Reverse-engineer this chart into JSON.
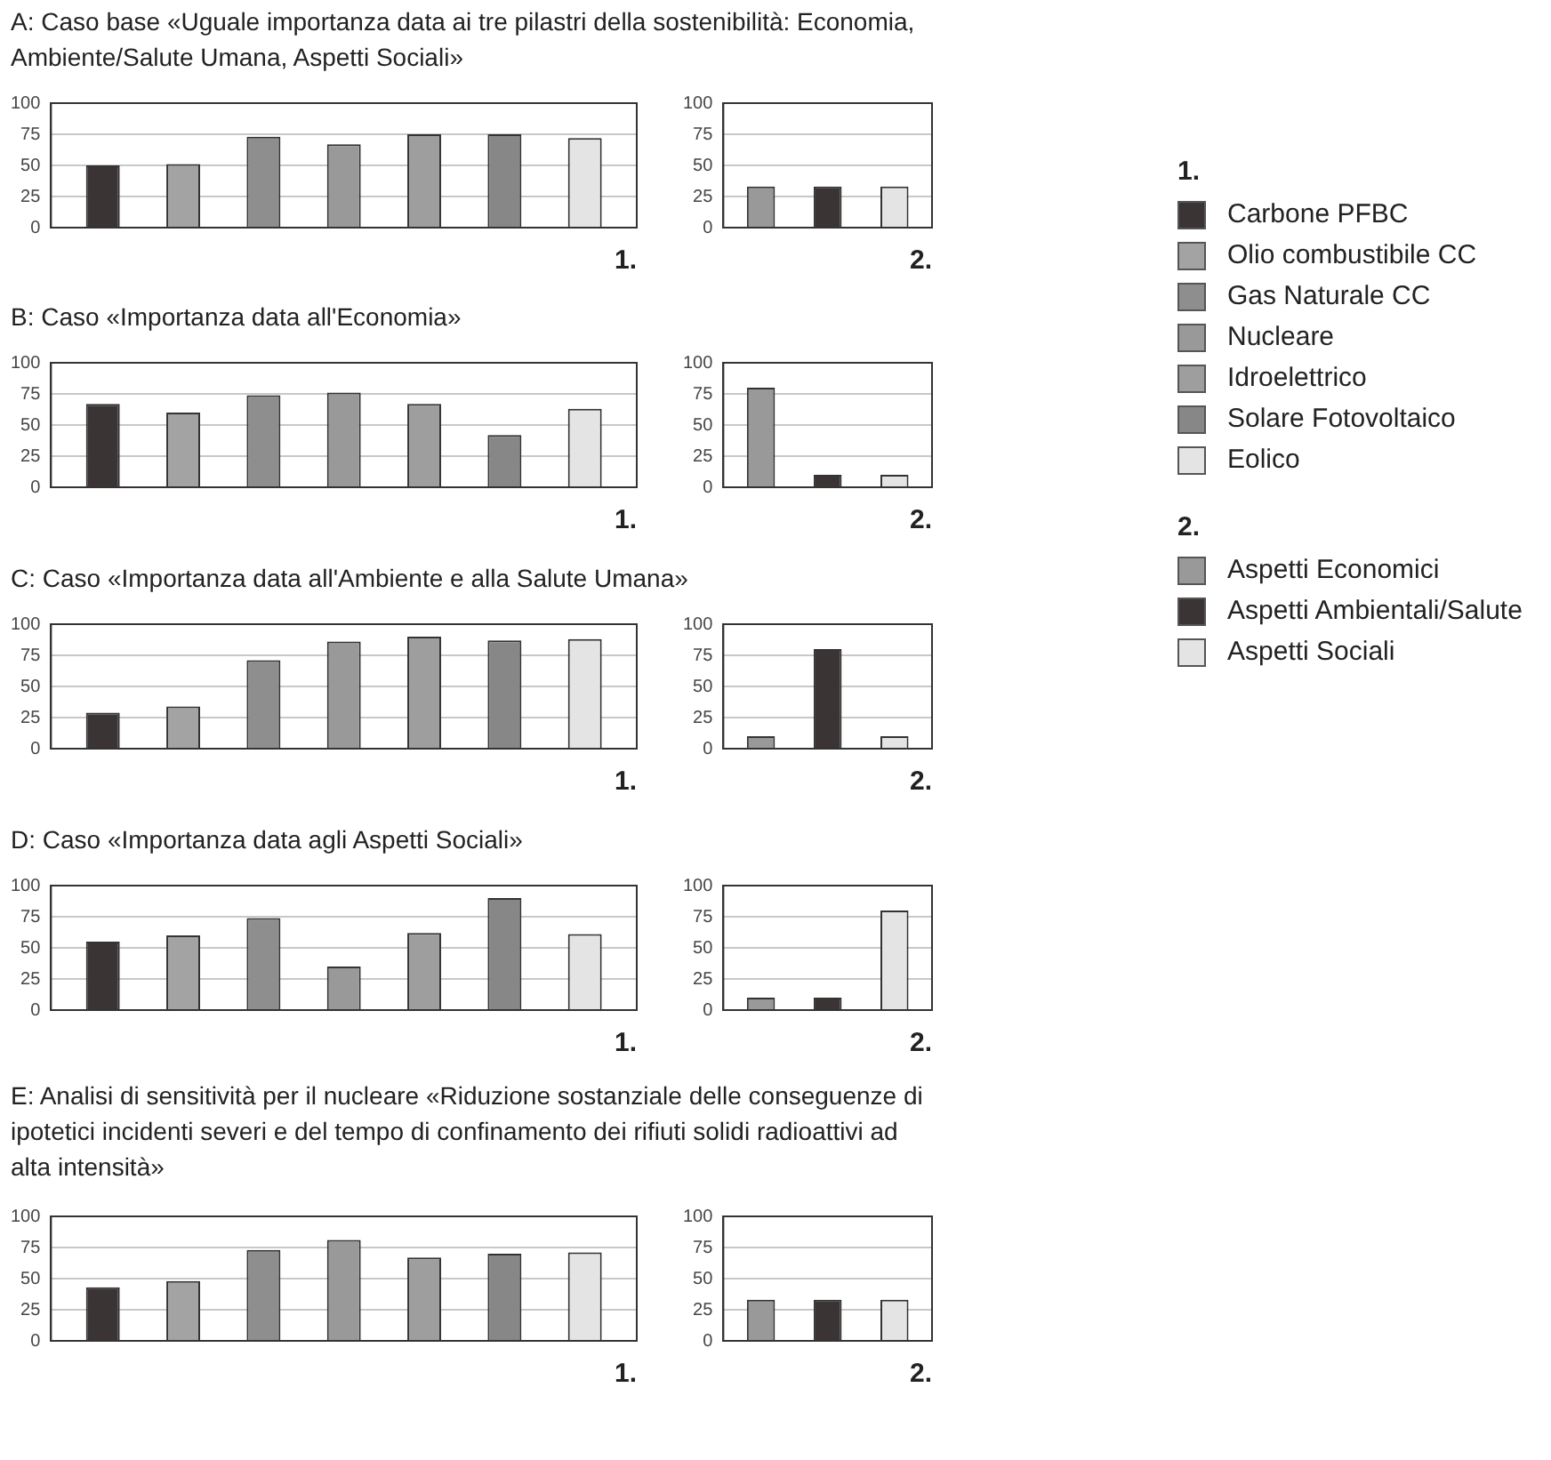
{
  "chart_data": [
    {
      "type": "bar",
      "title": "A: Caso base «Uguale importanza data ai tre pilastri della sostenibilità: Economia, Ambiente/Salute Umana, Aspetti Sociali»",
      "xlabel": "1.",
      "categories": [
        null
      ],
      "ylim": [
        0,
        100
      ],
      "yticks": [
        0,
        25,
        50,
        75,
        100
      ],
      "grid": "y",
      "legend": "right",
      "legend_title": "1.",
      "series": [
        {
          "name": "Carbone PFBC",
          "color": "#3b3434",
          "values": [
            50
          ]
        },
        {
          "name": "Olio combustibile CC",
          "color": "#a3a3a3",
          "values": [
            51
          ]
        },
        {
          "name": "Gas Naturale CC",
          "color": "#8e8e8e",
          "values": [
            73
          ]
        },
        {
          "name": "Nucleare",
          "color": "#999999",
          "values": [
            67
          ]
        },
        {
          "name": "Idroelettrico",
          "color": "#9e9e9e",
          "values": [
            75
          ]
        },
        {
          "name": "Solare Fotovoltaico",
          "color": "#878787",
          "values": [
            75
          ]
        },
        {
          "name": "Eolico",
          "color": "#e4e4e4",
          "values": [
            72
          ]
        }
      ]
    },
    {
      "type": "bar",
      "xlabel": "2.",
      "categories": [
        null
      ],
      "ylim": [
        0,
        100
      ],
      "yticks": [
        0,
        25,
        50,
        75,
        100
      ],
      "grid": "y",
      "legend": "right",
      "legend_title": "2.",
      "series": [
        {
          "name": "Aspetti Economici",
          "color": "#999999",
          "values": [
            33
          ]
        },
        {
          "name": "Aspetti Ambientali/Salute",
          "color": "#3b3434",
          "values": [
            33
          ]
        },
        {
          "name": "Aspetti Sociali",
          "color": "#e4e4e4",
          "values": [
            33
          ]
        }
      ]
    },
    {
      "type": "bar",
      "title": "B: Caso «Importanza data all'Economia»",
      "xlabel": "1.",
      "categories": [
        null
      ],
      "ylim": [
        0,
        100
      ],
      "yticks": [
        0,
        25,
        50,
        75,
        100
      ],
      "grid": "y",
      "series": [
        {
          "color": "#3b3434",
          "values": [
            67
          ]
        },
        {
          "color": "#a3a3a3",
          "values": [
            60
          ]
        },
        {
          "color": "#8e8e8e",
          "values": [
            74
          ]
        },
        {
          "color": "#999999",
          "values": [
            76
          ]
        },
        {
          "color": "#9e9e9e",
          "values": [
            67
          ]
        },
        {
          "color": "#878787",
          "values": [
            42
          ]
        },
        {
          "color": "#e4e4e4",
          "values": [
            63
          ]
        }
      ]
    },
    {
      "type": "bar",
      "xlabel": "2.",
      "categories": [
        null
      ],
      "ylim": [
        0,
        100
      ],
      "yticks": [
        0,
        25,
        50,
        75,
        100
      ],
      "grid": "y",
      "series": [
        {
          "color": "#999999",
          "values": [
            80
          ]
        },
        {
          "color": "#3b3434",
          "values": [
            10
          ]
        },
        {
          "color": "#e4e4e4",
          "values": [
            10
          ]
        }
      ]
    },
    {
      "type": "bar",
      "title": "C: Caso «Importanza data all'Ambiente e alla Salute Umana»",
      "xlabel": "1.",
      "categories": [
        null
      ],
      "ylim": [
        0,
        100
      ],
      "yticks": [
        0,
        25,
        50,
        75,
        100
      ],
      "grid": "y",
      "series": [
        {
          "color": "#3b3434",
          "values": [
            29
          ]
        },
        {
          "color": "#a3a3a3",
          "values": [
            34
          ]
        },
        {
          "color": "#8e8e8e",
          "values": [
            71
          ]
        },
        {
          "color": "#999999",
          "values": [
            86
          ]
        },
        {
          "color": "#9e9e9e",
          "values": [
            90
          ]
        },
        {
          "color": "#878787",
          "values": [
            87
          ]
        },
        {
          "color": "#e4e4e4",
          "values": [
            88
          ]
        }
      ]
    },
    {
      "type": "bar",
      "xlabel": "2.",
      "categories": [
        null
      ],
      "ylim": [
        0,
        100
      ],
      "yticks": [
        0,
        25,
        50,
        75,
        100
      ],
      "grid": "y",
      "series": [
        {
          "color": "#999999",
          "values": [
            10
          ]
        },
        {
          "color": "#3b3434",
          "values": [
            80
          ]
        },
        {
          "color": "#e4e4e4",
          "values": [
            10
          ]
        }
      ]
    },
    {
      "type": "bar",
      "title": "D: Caso «Importanza data agli Aspetti Sociali»",
      "xlabel": "1.",
      "categories": [
        null
      ],
      "ylim": [
        0,
        100
      ],
      "yticks": [
        0,
        25,
        50,
        75,
        100
      ],
      "grid": "y",
      "series": [
        {
          "color": "#3b3434",
          "values": [
            55
          ]
        },
        {
          "color": "#a3a3a3",
          "values": [
            60
          ]
        },
        {
          "color": "#8e8e8e",
          "values": [
            74
          ]
        },
        {
          "color": "#999999",
          "values": [
            35
          ]
        },
        {
          "color": "#9e9e9e",
          "values": [
            62
          ]
        },
        {
          "color": "#878787",
          "values": [
            90
          ]
        },
        {
          "color": "#e4e4e4",
          "values": [
            61
          ]
        }
      ]
    },
    {
      "type": "bar",
      "xlabel": "2.",
      "categories": [
        null
      ],
      "ylim": [
        0,
        100
      ],
      "yticks": [
        0,
        25,
        50,
        75,
        100
      ],
      "grid": "y",
      "series": [
        {
          "color": "#999999",
          "values": [
            10
          ]
        },
        {
          "color": "#3b3434",
          "values": [
            10
          ]
        },
        {
          "color": "#e4e4e4",
          "values": [
            80
          ]
        }
      ]
    },
    {
      "type": "bar",
      "title": "E: Analisi di sensitività per il nucleare «Riduzione sostanziale delle conseguenze di ipotetici incidenti severi e del tempo di confinamento dei rifiuti solidi radioattivi ad alta intensità»",
      "xlabel": "1.",
      "categories": [
        null
      ],
      "ylim": [
        0,
        100
      ],
      "yticks": [
        0,
        25,
        50,
        75,
        100
      ],
      "grid": "y",
      "series": [
        {
          "color": "#3b3434",
          "values": [
            43
          ]
        },
        {
          "color": "#a3a3a3",
          "values": [
            48
          ]
        },
        {
          "color": "#8e8e8e",
          "values": [
            73
          ]
        },
        {
          "color": "#999999",
          "values": [
            81
          ]
        },
        {
          "color": "#9e9e9e",
          "values": [
            67
          ]
        },
        {
          "color": "#878787",
          "values": [
            70
          ]
        },
        {
          "color": "#e4e4e4",
          "values": [
            71
          ]
        }
      ]
    },
    {
      "type": "bar",
      "xlabel": "2.",
      "categories": [
        null
      ],
      "ylim": [
        0,
        100
      ],
      "yticks": [
        0,
        25,
        50,
        75,
        100
      ],
      "grid": "y",
      "series": [
        {
          "color": "#999999",
          "values": [
            33
          ]
        },
        {
          "color": "#3b3434",
          "values": [
            33
          ]
        },
        {
          "color": "#e4e4e4",
          "values": [
            33
          ]
        }
      ]
    }
  ]
}
